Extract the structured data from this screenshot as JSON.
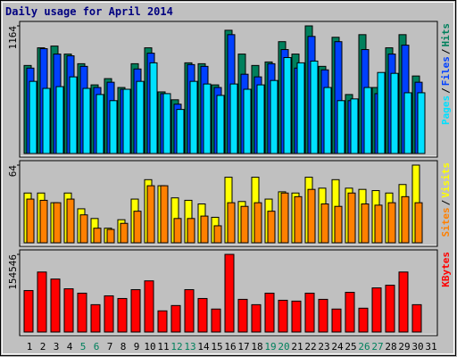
{
  "title": "Daily usage for April 2014",
  "legend_separator": "/",
  "label_color": "#000000",
  "weekend_color": "#00805c",
  "weekends": [
    4,
    5,
    11,
    12,
    18,
    19,
    25,
    26
  ],
  "chart_data": [
    {
      "type": "bar",
      "ylim": [
        0,
        1164
      ],
      "yticks": [
        1164
      ],
      "series": [
        {
          "name": "Hits",
          "color": "#00805c",
          "values": [
            803,
            964,
            980,
            907,
            819,
            626,
            683,
            602,
            819,
            964,
            562,
            490,
            827,
            819,
            626,
            1124,
            907,
            803,
            835,
            1020,
            907,
            1164,
            795,
            1060,
            538,
            1084,
            602,
            964,
            1084,
            707,
            null
          ]
        },
        {
          "name": "Files",
          "color": "#0040ff",
          "values": [
            779,
            956,
            907,
            891,
            795,
            602,
            650,
            586,
            771,
            915,
            546,
            450,
            811,
            795,
            602,
            1084,
            723,
            699,
            819,
            948,
            779,
            1068,
            763,
            1020,
            482,
            948,
            546,
            907,
            988,
            650,
            null
          ]
        },
        {
          "name": "Pages",
          "color": "#00e0ff",
          "values": [
            658,
            594,
            610,
            699,
            594,
            538,
            482,
            586,
            658,
            827,
            546,
            402,
            658,
            634,
            530,
            634,
            586,
            626,
            666,
            875,
            827,
            843,
            602,
            482,
            498,
            602,
            739,
            731,
            554,
            554,
            null
          ]
        }
      ]
    },
    {
      "type": "bar",
      "ylim": [
        0,
        64
      ],
      "yticks": [
        64
      ],
      "series": [
        {
          "name": "Visits",
          "color": "#ffff00",
          "values": [
            41,
            41,
            33,
            41,
            28,
            20,
            12,
            19,
            36,
            52,
            47,
            37,
            35,
            32,
            21,
            54,
            34,
            54,
            36,
            42,
            41,
            54,
            45,
            52,
            45,
            44,
            43,
            41,
            48,
            64,
            null
          ]
        },
        {
          "name": "Sites",
          "color": "#ff8000",
          "values": [
            36,
            35,
            33,
            36,
            23,
            12,
            11,
            16,
            26,
            47,
            47,
            20,
            20,
            22,
            14,
            33,
            30,
            33,
            26,
            41,
            38,
            44,
            32,
            30,
            41,
            32,
            31,
            33,
            38,
            33,
            null
          ]
        }
      ]
    },
    {
      "type": "bar",
      "ylim": [
        0,
        154546
      ],
      "yticks": [
        154546
      ],
      "categories": [
        "1",
        "2",
        "3",
        "4",
        "5",
        "6",
        "7",
        "8",
        "9",
        "10",
        "11",
        "12",
        "13",
        "14",
        "15",
        "16",
        "17",
        "18",
        "19",
        "20",
        "21",
        "22",
        "23",
        "24",
        "25",
        "26",
        "27",
        "28",
        "29",
        "30",
        "31"
      ],
      "series": [
        {
          "name": "KBytes",
          "color": "#ff0000",
          "values": [
            82500,
            119400,
            105400,
            86000,
            77300,
            54400,
            72000,
            66700,
            84300,
            101800,
            42100,
            52700,
            84300,
            66700,
            45700,
            154546,
            65000,
            54400,
            77300,
            63200,
            61500,
            77300,
            65000,
            45700,
            79000,
            47400,
            87800,
            93100,
            119400,
            54400,
            null
          ]
        }
      ]
    }
  ]
}
